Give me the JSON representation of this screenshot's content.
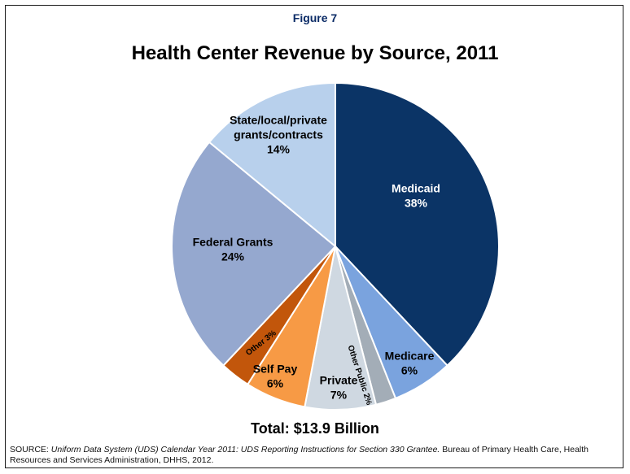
{
  "figure_label": "Figure 7",
  "chart_data": {
    "type": "pie",
    "title": "Health Center Revenue by Source, 2011",
    "slices": [
      {
        "name": "Medicaid",
        "value": 38,
        "label": "38%",
        "color": "#0b3466",
        "text_color": "#ffffff"
      },
      {
        "name": "Medicare",
        "value": 6,
        "label": "6%",
        "color": "#7aa3de",
        "text_color": "#000000"
      },
      {
        "name": "Other Public",
        "value": 2,
        "label": "2%",
        "color": "#a3adb7",
        "text_color": "#000000"
      },
      {
        "name": "Private",
        "value": 7,
        "label": "7%",
        "color": "#cfd8e1",
        "text_color": "#000000"
      },
      {
        "name": "Self Pay",
        "value": 6,
        "label": "6%",
        "color": "#f79a45",
        "text_color": "#000000"
      },
      {
        "name": "Other",
        "value": 3,
        "label": "3%",
        "color": "#c2560b",
        "text_color": "#000000"
      },
      {
        "name": "Federal Grants",
        "value": 24,
        "label": "24%",
        "color": "#95a8cf",
        "text_color": "#000000"
      },
      {
        "name": "State/local/private grants/contracts",
        "value": 14,
        "label": "14%",
        "color": "#b8d0ec",
        "text_color": "#000000"
      }
    ]
  },
  "total_label": "Total: $13.9 Billion",
  "source": {
    "prefix": "SOURCE: ",
    "citation": "Uniform Data System (UDS) Calendar Year 2011: UDS Reporting Instructions for Section 330 Grantee.",
    "rest": " Bureau of Primary Health Care, Health Resources and Services Administration, DHHS, 2012."
  }
}
